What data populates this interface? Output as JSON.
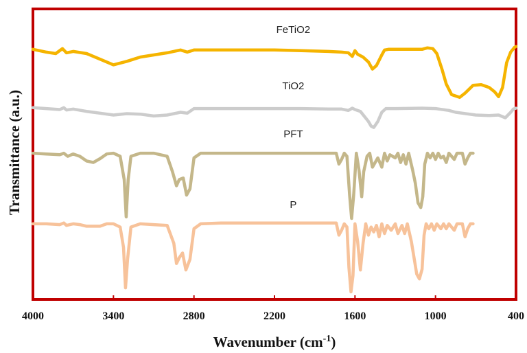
{
  "chart_data": {
    "type": "line",
    "xlabel": "Wavenumber (cm-1)",
    "xlabel_main": "Wavenumber (cm",
    "xlabel_sup": "-1",
    "xlabel_end": ")",
    "ylabel": "Transmittance (a.u.)",
    "xlim": [
      4000,
      400
    ],
    "x_reversed": true,
    "x_ticks": [
      4000,
      3400,
      2800,
      2200,
      1600,
      1000,
      400
    ],
    "y_units": "arbitrary (stacked, offset)",
    "grid": false,
    "frame_color": "#c00000",
    "series": [
      {
        "name": "FeTiO2",
        "color": "#f5b400",
        "points": [
          [
            4000,
            0.74
          ],
          [
            3900,
            0.7
          ],
          [
            3830,
            0.68
          ],
          [
            3780,
            0.75
          ],
          [
            3750,
            0.69
          ],
          [
            3700,
            0.71
          ],
          [
            3600,
            0.68
          ],
          [
            3500,
            0.6
          ],
          [
            3400,
            0.52
          ],
          [
            3300,
            0.57
          ],
          [
            3200,
            0.63
          ],
          [
            3100,
            0.66
          ],
          [
            3000,
            0.69
          ],
          [
            2900,
            0.73
          ],
          [
            2850,
            0.7
          ],
          [
            2800,
            0.73
          ],
          [
            2600,
            0.73
          ],
          [
            2400,
            0.73
          ],
          [
            2200,
            0.73
          ],
          [
            2000,
            0.72
          ],
          [
            1800,
            0.71
          ],
          [
            1700,
            0.7
          ],
          [
            1650,
            0.69
          ],
          [
            1620,
            0.64
          ],
          [
            1600,
            0.72
          ],
          [
            1580,
            0.67
          ],
          [
            1540,
            0.63
          ],
          [
            1500,
            0.56
          ],
          [
            1470,
            0.46
          ],
          [
            1440,
            0.51
          ],
          [
            1400,
            0.66
          ],
          [
            1380,
            0.73
          ],
          [
            1350,
            0.74
          ],
          [
            1200,
            0.74
          ],
          [
            1100,
            0.74
          ],
          [
            1060,
            0.76
          ],
          [
            1020,
            0.75
          ],
          [
            990,
            0.68
          ],
          [
            950,
            0.45
          ],
          [
            920,
            0.25
          ],
          [
            880,
            0.1
          ],
          [
            820,
            0.06
          ],
          [
            780,
            0.12
          ],
          [
            720,
            0.23
          ],
          [
            660,
            0.24
          ],
          [
            600,
            0.2
          ],
          [
            560,
            0.14
          ],
          [
            530,
            0.07
          ],
          [
            500,
            0.2
          ],
          [
            470,
            0.55
          ],
          [
            440,
            0.7
          ],
          [
            410,
            0.77
          ],
          [
            400,
            0.78
          ]
        ]
      },
      {
        "name": "TiO2",
        "color": "#cccccc",
        "points": [
          [
            4000,
            0.6
          ],
          [
            3900,
            0.58
          ],
          [
            3800,
            0.56
          ],
          [
            3770,
            0.6
          ],
          [
            3750,
            0.55
          ],
          [
            3700,
            0.57
          ],
          [
            3600,
            0.52
          ],
          [
            3500,
            0.48
          ],
          [
            3400,
            0.44
          ],
          [
            3300,
            0.47
          ],
          [
            3200,
            0.46
          ],
          [
            3100,
            0.42
          ],
          [
            3000,
            0.44
          ],
          [
            2900,
            0.5
          ],
          [
            2850,
            0.48
          ],
          [
            2800,
            0.58
          ],
          [
            2600,
            0.58
          ],
          [
            2400,
            0.58
          ],
          [
            2200,
            0.58
          ],
          [
            2000,
            0.58
          ],
          [
            1800,
            0.57
          ],
          [
            1700,
            0.57
          ],
          [
            1650,
            0.54
          ],
          [
            1620,
            0.59
          ],
          [
            1600,
            0.56
          ],
          [
            1560,
            0.52
          ],
          [
            1500,
            0.3
          ],
          [
            1480,
            0.2
          ],
          [
            1460,
            0.17
          ],
          [
            1430,
            0.3
          ],
          [
            1400,
            0.5
          ],
          [
            1370,
            0.58
          ],
          [
            1300,
            0.58
          ],
          [
            1100,
            0.59
          ],
          [
            1000,
            0.58
          ],
          [
            900,
            0.54
          ],
          [
            850,
            0.5
          ],
          [
            800,
            0.48
          ],
          [
            700,
            0.44
          ],
          [
            600,
            0.43
          ],
          [
            530,
            0.44
          ],
          [
            480,
            0.38
          ],
          [
            440,
            0.5
          ],
          [
            420,
            0.57
          ],
          [
            400,
            0.59
          ]
        ]
      },
      {
        "name": "PFT",
        "color": "#c4b78a",
        "points": [
          [
            4000,
            0.84
          ],
          [
            3900,
            0.83
          ],
          [
            3800,
            0.82
          ],
          [
            3770,
            0.84
          ],
          [
            3740,
            0.8
          ],
          [
            3700,
            0.83
          ],
          [
            3650,
            0.8
          ],
          [
            3600,
            0.74
          ],
          [
            3550,
            0.72
          ],
          [
            3500,
            0.77
          ],
          [
            3450,
            0.83
          ],
          [
            3400,
            0.84
          ],
          [
            3350,
            0.8
          ],
          [
            3320,
            0.5
          ],
          [
            3305,
            0.02
          ],
          [
            3290,
            0.5
          ],
          [
            3270,
            0.8
          ],
          [
            3200,
            0.84
          ],
          [
            3100,
            0.84
          ],
          [
            3000,
            0.8
          ],
          [
            2960,
            0.6
          ],
          [
            2930,
            0.42
          ],
          [
            2910,
            0.5
          ],
          [
            2880,
            0.52
          ],
          [
            2855,
            0.3
          ],
          [
            2830,
            0.38
          ],
          [
            2800,
            0.78
          ],
          [
            2750,
            0.84
          ],
          [
            2600,
            0.84
          ],
          [
            2400,
            0.84
          ],
          [
            2200,
            0.84
          ],
          [
            2000,
            0.84
          ],
          [
            1800,
            0.84
          ],
          [
            1740,
            0.84
          ],
          [
            1720,
            0.7
          ],
          [
            1700,
            0.76
          ],
          [
            1680,
            0.84
          ],
          [
            1660,
            0.8
          ],
          [
            1640,
            0.3
          ],
          [
            1625,
            0.0
          ],
          [
            1610,
            0.3
          ],
          [
            1590,
            0.84
          ],
          [
            1570,
            0.62
          ],
          [
            1550,
            0.28
          ],
          [
            1535,
            0.6
          ],
          [
            1510,
            0.8
          ],
          [
            1490,
            0.84
          ],
          [
            1470,
            0.66
          ],
          [
            1450,
            0.72
          ],
          [
            1430,
            0.78
          ],
          [
            1400,
            0.66
          ],
          [
            1380,
            0.84
          ],
          [
            1360,
            0.74
          ],
          [
            1340,
            0.82
          ],
          [
            1300,
            0.78
          ],
          [
            1280,
            0.84
          ],
          [
            1260,
            0.72
          ],
          [
            1240,
            0.82
          ],
          [
            1220,
            0.7
          ],
          [
            1200,
            0.84
          ],
          [
            1170,
            0.62
          ],
          [
            1150,
            0.45
          ],
          [
            1130,
            0.2
          ],
          [
            1110,
            0.14
          ],
          [
            1095,
            0.28
          ],
          [
            1080,
            0.7
          ],
          [
            1060,
            0.84
          ],
          [
            1040,
            0.78
          ],
          [
            1020,
            0.84
          ],
          [
            1000,
            0.76
          ],
          [
            980,
            0.84
          ],
          [
            960,
            0.78
          ],
          [
            940,
            0.8
          ],
          [
            920,
            0.72
          ],
          [
            900,
            0.84
          ],
          [
            860,
            0.76
          ],
          [
            840,
            0.84
          ],
          [
            800,
            0.84
          ],
          [
            780,
            0.7
          ],
          [
            760,
            0.78
          ],
          [
            740,
            0.84
          ],
          [
            720,
            0.84
          ]
        ]
      },
      {
        "name": "P",
        "color": "#f7c29a",
        "points": [
          [
            4000,
            0.84
          ],
          [
            3900,
            0.84
          ],
          [
            3800,
            0.83
          ],
          [
            3770,
            0.85
          ],
          [
            3750,
            0.82
          ],
          [
            3700,
            0.84
          ],
          [
            3650,
            0.83
          ],
          [
            3600,
            0.81
          ],
          [
            3500,
            0.81
          ],
          [
            3450,
            0.84
          ],
          [
            3400,
            0.84
          ],
          [
            3350,
            0.8
          ],
          [
            3325,
            0.55
          ],
          [
            3310,
            0.05
          ],
          [
            3295,
            0.4
          ],
          [
            3270,
            0.8
          ],
          [
            3200,
            0.84
          ],
          [
            3100,
            0.83
          ],
          [
            3000,
            0.82
          ],
          [
            2950,
            0.6
          ],
          [
            2930,
            0.35
          ],
          [
            2910,
            0.42
          ],
          [
            2885,
            0.48
          ],
          [
            2860,
            0.27
          ],
          [
            2830,
            0.4
          ],
          [
            2800,
            0.78
          ],
          [
            2750,
            0.84
          ],
          [
            2600,
            0.85
          ],
          [
            2400,
            0.85
          ],
          [
            2200,
            0.85
          ],
          [
            2000,
            0.85
          ],
          [
            1800,
            0.85
          ],
          [
            1740,
            0.85
          ],
          [
            1720,
            0.7
          ],
          [
            1700,
            0.76
          ],
          [
            1680,
            0.84
          ],
          [
            1660,
            0.8
          ],
          [
            1645,
            0.3
          ],
          [
            1630,
            0.0
          ],
          [
            1615,
            0.2
          ],
          [
            1600,
            0.84
          ],
          [
            1580,
            0.62
          ],
          [
            1560,
            0.27
          ],
          [
            1540,
            0.6
          ],
          [
            1520,
            0.84
          ],
          [
            1500,
            0.7
          ],
          [
            1480,
            0.8
          ],
          [
            1460,
            0.74
          ],
          [
            1440,
            0.82
          ],
          [
            1420,
            0.68
          ],
          [
            1400,
            0.84
          ],
          [
            1380,
            0.72
          ],
          [
            1360,
            0.82
          ],
          [
            1330,
            0.76
          ],
          [
            1300,
            0.84
          ],
          [
            1280,
            0.72
          ],
          [
            1250,
            0.82
          ],
          [
            1230,
            0.72
          ],
          [
            1210,
            0.84
          ],
          [
            1180,
            0.62
          ],
          [
            1160,
            0.42
          ],
          [
            1140,
            0.22
          ],
          [
            1120,
            0.16
          ],
          [
            1100,
            0.28
          ],
          [
            1085,
            0.7
          ],
          [
            1070,
            0.84
          ],
          [
            1050,
            0.78
          ],
          [
            1030,
            0.84
          ],
          [
            1010,
            0.76
          ],
          [
            990,
            0.84
          ],
          [
            960,
            0.78
          ],
          [
            940,
            0.84
          ],
          [
            920,
            0.78
          ],
          [
            900,
            0.84
          ],
          [
            860,
            0.76
          ],
          [
            840,
            0.84
          ],
          [
            800,
            0.84
          ],
          [
            780,
            0.68
          ],
          [
            760,
            0.78
          ],
          [
            740,
            0.84
          ],
          [
            720,
            0.84
          ]
        ]
      }
    ]
  }
}
